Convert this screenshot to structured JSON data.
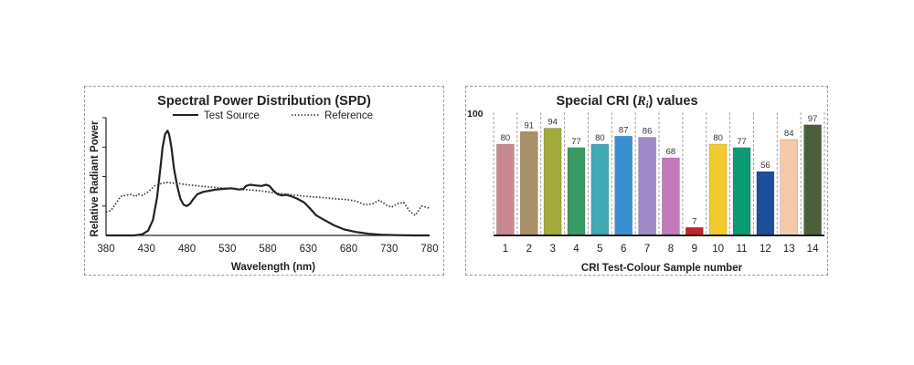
{
  "chart_data": [
    {
      "type": "line",
      "title": "Spectral Power Distribution (SPD)",
      "xlabel": "Wavelength (nm)",
      "ylabel": "Relative Radiant Power",
      "xlim": [
        380,
        780
      ],
      "ylim": [
        0,
        1
      ],
      "xticks": [
        "380",
        "430",
        "480",
        "530",
        "580",
        "630",
        "680",
        "730",
        "780"
      ],
      "yticks_labeled": false,
      "grid": false,
      "legend": "top",
      "series": [
        {
          "name": "Test Source",
          "style": "solid",
          "color": "#222222",
          "x": [
            380,
            400,
            415,
            425,
            432,
            438,
            443,
            447,
            450,
            453,
            456,
            458,
            461,
            464,
            468,
            472,
            476,
            480,
            484,
            488,
            493,
            500,
            508,
            516,
            525,
            535,
            545,
            550,
            553,
            558,
            565,
            572,
            578,
            582,
            587,
            592,
            597,
            603,
            610,
            617,
            625,
            632,
            640,
            650,
            662,
            675,
            690,
            705,
            720,
            740,
            760,
            780
          ],
          "y": [
            0.0,
            0.0,
            0.0,
            0.01,
            0.04,
            0.13,
            0.32,
            0.56,
            0.75,
            0.86,
            0.89,
            0.86,
            0.74,
            0.57,
            0.42,
            0.31,
            0.26,
            0.25,
            0.27,
            0.31,
            0.35,
            0.37,
            0.38,
            0.39,
            0.395,
            0.4,
            0.39,
            0.395,
            0.42,
            0.43,
            0.425,
            0.42,
            0.43,
            0.42,
            0.38,
            0.35,
            0.34,
            0.345,
            0.33,
            0.31,
            0.28,
            0.23,
            0.17,
            0.13,
            0.085,
            0.05,
            0.028,
            0.014,
            0.006,
            0.002,
            0.0,
            0.0
          ]
        },
        {
          "name": "Reference",
          "style": "dotted",
          "color": "#333333",
          "x": [
            380,
            386,
            392,
            398,
            404,
            410,
            416,
            420,
            425,
            432,
            440,
            448,
            455,
            462,
            470,
            480,
            495,
            510,
            530,
            550,
            570,
            590,
            610,
            630,
            650,
            665,
            678,
            690,
            700,
            710,
            718,
            726,
            733,
            740,
            748,
            755,
            762,
            770,
            776,
            780
          ],
          "y": [
            0.2,
            0.21,
            0.27,
            0.33,
            0.34,
            0.35,
            0.33,
            0.35,
            0.34,
            0.37,
            0.42,
            0.44,
            0.45,
            0.445,
            0.44,
            0.43,
            0.42,
            0.41,
            0.4,
            0.39,
            0.38,
            0.36,
            0.345,
            0.33,
            0.32,
            0.31,
            0.305,
            0.29,
            0.26,
            0.27,
            0.3,
            0.26,
            0.24,
            0.27,
            0.28,
            0.21,
            0.17,
            0.25,
            0.24,
            0.23
          ]
        }
      ]
    },
    {
      "type": "bar",
      "title": "Special CRI (Ri) values",
      "title_prefix": "Special CRI (",
      "title_var": "R",
      "title_sub": "i",
      "title_suffix": ") values",
      "xlabel": "CRI Test-Colour Sample number",
      "ylabel": "",
      "ytick_label": "100",
      "ylim": [
        0,
        100
      ],
      "grid": "dashed vertical separators",
      "categories": [
        "1",
        "2",
        "3",
        "4",
        "5",
        "6",
        "7",
        "8",
        "9",
        "10",
        "11",
        "12",
        "13",
        "14"
      ],
      "values": [
        80,
        91,
        94,
        77,
        80,
        87,
        86,
        68,
        7,
        80,
        77,
        56,
        84,
        97
      ],
      "colors": [
        "#c9888f",
        "#a89166",
        "#a3ab3a",
        "#3b9a63",
        "#41a8b5",
        "#3a8fd0",
        "#9d8ac6",
        "#c27ab9",
        "#c4232d",
        "#f2ca2c",
        "#0d9a74",
        "#1e4d9a",
        "#f4c8a8",
        "#4a5e3a"
      ]
    }
  ]
}
